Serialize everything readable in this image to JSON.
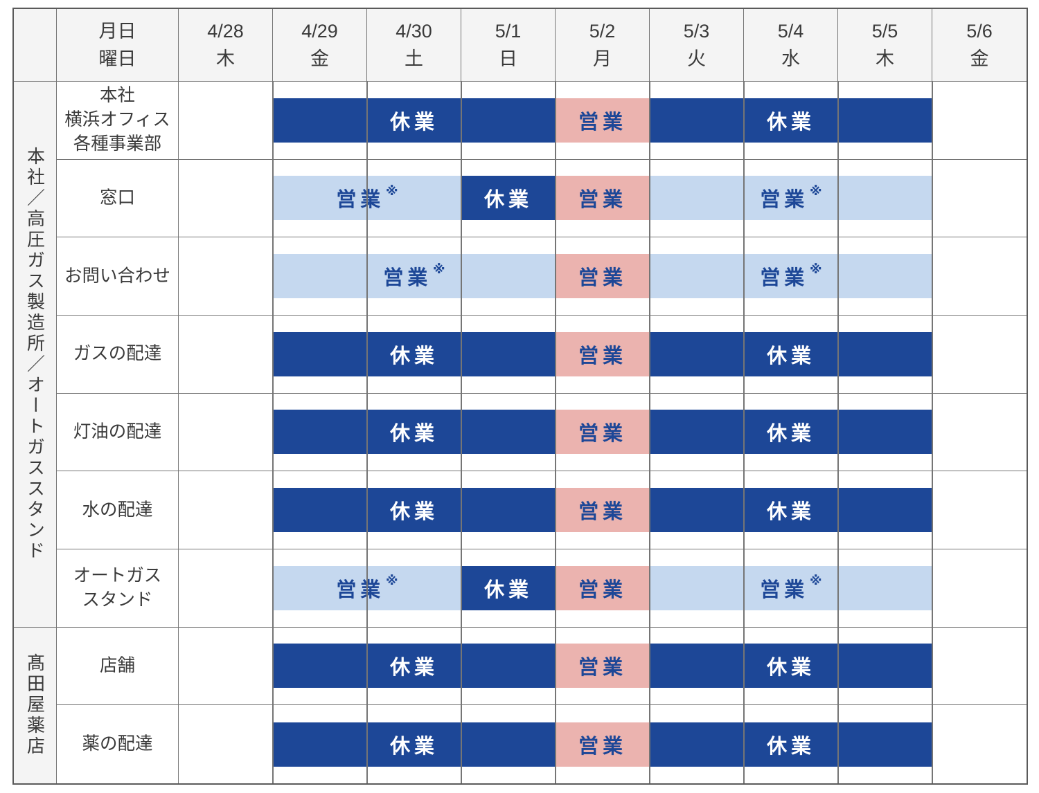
{
  "colors": {
    "closed_bar": "#1D4797",
    "open_bar": "#EBB3AF",
    "limited_open_bar": "#C5D8EF",
    "bar_text_dark_blue": "#1D4797",
    "bar_text_white": "#FFFFFF",
    "header_background": "#F4F4F4",
    "grid_line": "#757575",
    "outer_border": "#5A5A5A"
  },
  "table": {
    "header": {
      "date_row_label": "月日",
      "weekday_row_label": "曜日",
      "days": [
        {
          "date": "4/28",
          "weekday": "木"
        },
        {
          "date": "4/29",
          "weekday": "金"
        },
        {
          "date": "4/30",
          "weekday": "土"
        },
        {
          "date": "5/1",
          "weekday": "日"
        },
        {
          "date": "5/2",
          "weekday": "月"
        },
        {
          "date": "5/3",
          "weekday": "火"
        },
        {
          "date": "5/4",
          "weekday": "水"
        },
        {
          "date": "5/5",
          "weekday": "木"
        },
        {
          "date": "5/6",
          "weekday": "金"
        }
      ]
    },
    "groups": [
      {
        "name": "本社／高圧ガス製造所／オートガススタンド"
      },
      {
        "name": "髙田屋薬店"
      }
    ],
    "rows": [
      {
        "label_lines": [
          "本社",
          "横浜オフィス",
          "各種事業部"
        ],
        "bars": [
          {
            "label": "休業",
            "status": "closed"
          },
          {
            "label": "営業",
            "status": "open"
          },
          {
            "label": "休業",
            "status": "closed"
          }
        ]
      },
      {
        "label_lines": [
          "窓口"
        ],
        "bars": [
          {
            "label": "営業",
            "note": "※",
            "status": "limited"
          },
          {
            "label": "休業",
            "status": "closed"
          },
          {
            "label": "営業",
            "status": "open"
          },
          {
            "label": "営業",
            "note": "※",
            "status": "limited"
          }
        ]
      },
      {
        "label_lines": [
          "お問い合わせ"
        ],
        "bars": [
          {
            "label": "営業",
            "note": "※",
            "status": "limited"
          },
          {
            "label": "営業",
            "status": "open"
          },
          {
            "label": "営業",
            "note": "※",
            "status": "limited"
          }
        ]
      },
      {
        "label_lines": [
          "ガスの配達"
        ],
        "bars": [
          {
            "label": "休業",
            "status": "closed"
          },
          {
            "label": "営業",
            "status": "open"
          },
          {
            "label": "休業",
            "status": "closed"
          }
        ]
      },
      {
        "label_lines": [
          "灯油の配達"
        ],
        "bars": [
          {
            "label": "休業",
            "status": "closed"
          },
          {
            "label": "営業",
            "status": "open"
          },
          {
            "label": "休業",
            "status": "closed"
          }
        ]
      },
      {
        "label_lines": [
          "水の配達"
        ],
        "bars": [
          {
            "label": "休業",
            "status": "closed"
          },
          {
            "label": "営業",
            "status": "open"
          },
          {
            "label": "休業",
            "status": "closed"
          }
        ]
      },
      {
        "label_lines": [
          "オートガス",
          "スタンド"
        ],
        "bars": [
          {
            "label": "営業",
            "note": "※",
            "status": "limited"
          },
          {
            "label": "休業",
            "status": "closed"
          },
          {
            "label": "営業",
            "status": "open"
          },
          {
            "label": "営業",
            "note": "※",
            "status": "limited"
          }
        ]
      },
      {
        "label_lines": [
          "店舗"
        ],
        "bars": [
          {
            "label": "休業",
            "status": "closed"
          },
          {
            "label": "営業",
            "status": "open"
          },
          {
            "label": "休業",
            "status": "closed"
          }
        ]
      },
      {
        "label_lines": [
          "薬の配達"
        ],
        "bars": [
          {
            "label": "休業",
            "status": "closed"
          },
          {
            "label": "営業",
            "status": "open"
          },
          {
            "label": "休業",
            "status": "closed"
          }
        ]
      }
    ]
  },
  "chart_data": {
    "type": "table",
    "title": "",
    "categories": [
      "4/28 木",
      "4/29 金",
      "4/30 土",
      "5/1 日",
      "5/2 月",
      "5/3 火",
      "5/4 水",
      "5/5 木",
      "5/6 金"
    ],
    "legend_position": "none",
    "rows": [
      {
        "group": "本社／高圧ガス製造所／オートガススタンド",
        "name": "本社 横浜オフィス 各種事業部",
        "statuses": [
          "",
          "休業",
          "休業",
          "休業",
          "営業",
          "休業",
          "休業",
          "休業",
          ""
        ]
      },
      {
        "group": "本社／高圧ガス製造所／オートガススタンド",
        "name": "窓口",
        "statuses": [
          "",
          "営業※",
          "営業※",
          "休業",
          "営業",
          "営業※",
          "営業※",
          "営業※",
          ""
        ]
      },
      {
        "group": "本社／高圧ガス製造所／オートガススタンド",
        "name": "お問い合わせ",
        "statuses": [
          "",
          "営業※",
          "営業※",
          "営業※",
          "営業",
          "営業※",
          "営業※",
          "営業※",
          ""
        ]
      },
      {
        "group": "本社／高圧ガス製造所／オートガススタンド",
        "name": "ガスの配達",
        "statuses": [
          "",
          "休業",
          "休業",
          "休業",
          "営業",
          "休業",
          "休業",
          "休業",
          ""
        ]
      },
      {
        "group": "本社／高圧ガス製造所／オートガススタンド",
        "name": "灯油の配達",
        "statuses": [
          "",
          "休業",
          "休業",
          "休業",
          "営業",
          "休業",
          "休業",
          "休業",
          ""
        ]
      },
      {
        "group": "本社／高圧ガス製造所／オートガススタンド",
        "name": "水の配達",
        "statuses": [
          "",
          "休業",
          "休業",
          "休業",
          "営業",
          "休業",
          "休業",
          "休業",
          ""
        ]
      },
      {
        "group": "本社／高圧ガス製造所／オートガススタンド",
        "name": "オートガススタンド",
        "statuses": [
          "",
          "営業※",
          "営業※",
          "休業",
          "営業",
          "営業※",
          "営業※",
          "営業※",
          ""
        ]
      },
      {
        "group": "髙田屋薬店",
        "name": "店舗",
        "statuses": [
          "",
          "休業",
          "休業",
          "休業",
          "営業",
          "休業",
          "休業",
          "休業",
          ""
        ]
      },
      {
        "group": "髙田屋薬店",
        "name": "薬の配達",
        "statuses": [
          "",
          "休業",
          "休業",
          "休業",
          "営業",
          "休業",
          "休業",
          "休業",
          ""
        ]
      }
    ]
  }
}
